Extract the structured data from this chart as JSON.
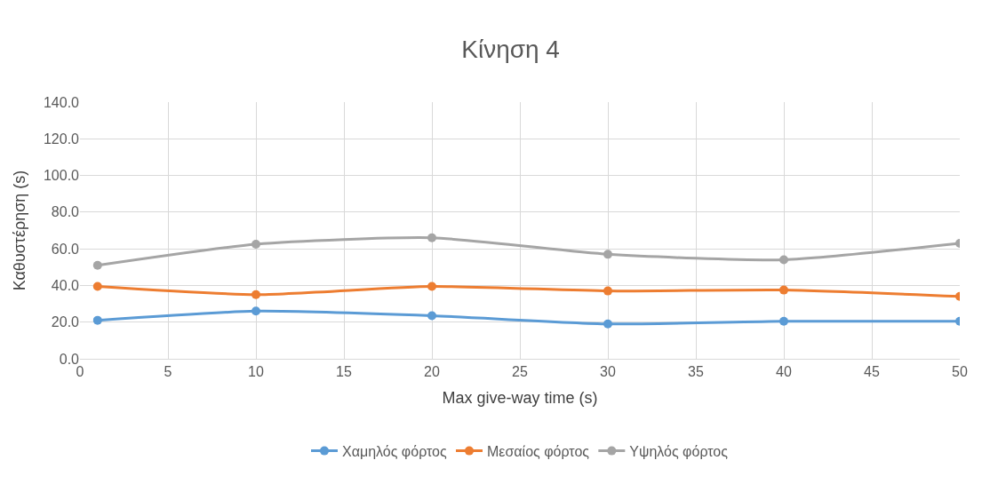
{
  "chart_data": {
    "type": "line",
    "title": "Κίνηση 4",
    "xlabel": "Max give-way time (s)",
    "ylabel": "Καθυστέρηση (s)",
    "x": [
      1,
      10,
      20,
      30,
      40,
      50
    ],
    "series": [
      {
        "name": "Χαμηλός φόρτος",
        "color": "#5b9bd5",
        "values": [
          21,
          26,
          23.5,
          19,
          20.5,
          20.5
        ]
      },
      {
        "name": "Μεσαίος φόρτος",
        "color": "#ed7d31",
        "values": [
          39.5,
          35,
          39.5,
          37,
          37.5,
          34
        ]
      },
      {
        "name": "Υψηλός φόρτος",
        "color": "#a5a5a5",
        "values": [
          51,
          62.5,
          66,
          57,
          54,
          63
        ]
      }
    ],
    "xlim": [
      0,
      50
    ],
    "xticks": [
      0,
      5,
      10,
      15,
      20,
      25,
      30,
      35,
      40,
      45,
      50
    ],
    "ylim": [
      0,
      140
    ],
    "yticks": [
      {
        "value": 0,
        "label": "0.0"
      },
      {
        "value": 20,
        "label": "20.0"
      },
      {
        "value": 40,
        "label": "40.0"
      },
      {
        "value": 60,
        "label": "60.0"
      },
      {
        "value": 80,
        "label": "80.0"
      },
      {
        "value": 100,
        "label": "100.0"
      },
      {
        "value": 120,
        "label": "120.0"
      },
      {
        "value": 140,
        "label": "140.0"
      }
    ],
    "grid": true,
    "legend": "bottom",
    "marker": "circle",
    "line_style": "solid"
  }
}
